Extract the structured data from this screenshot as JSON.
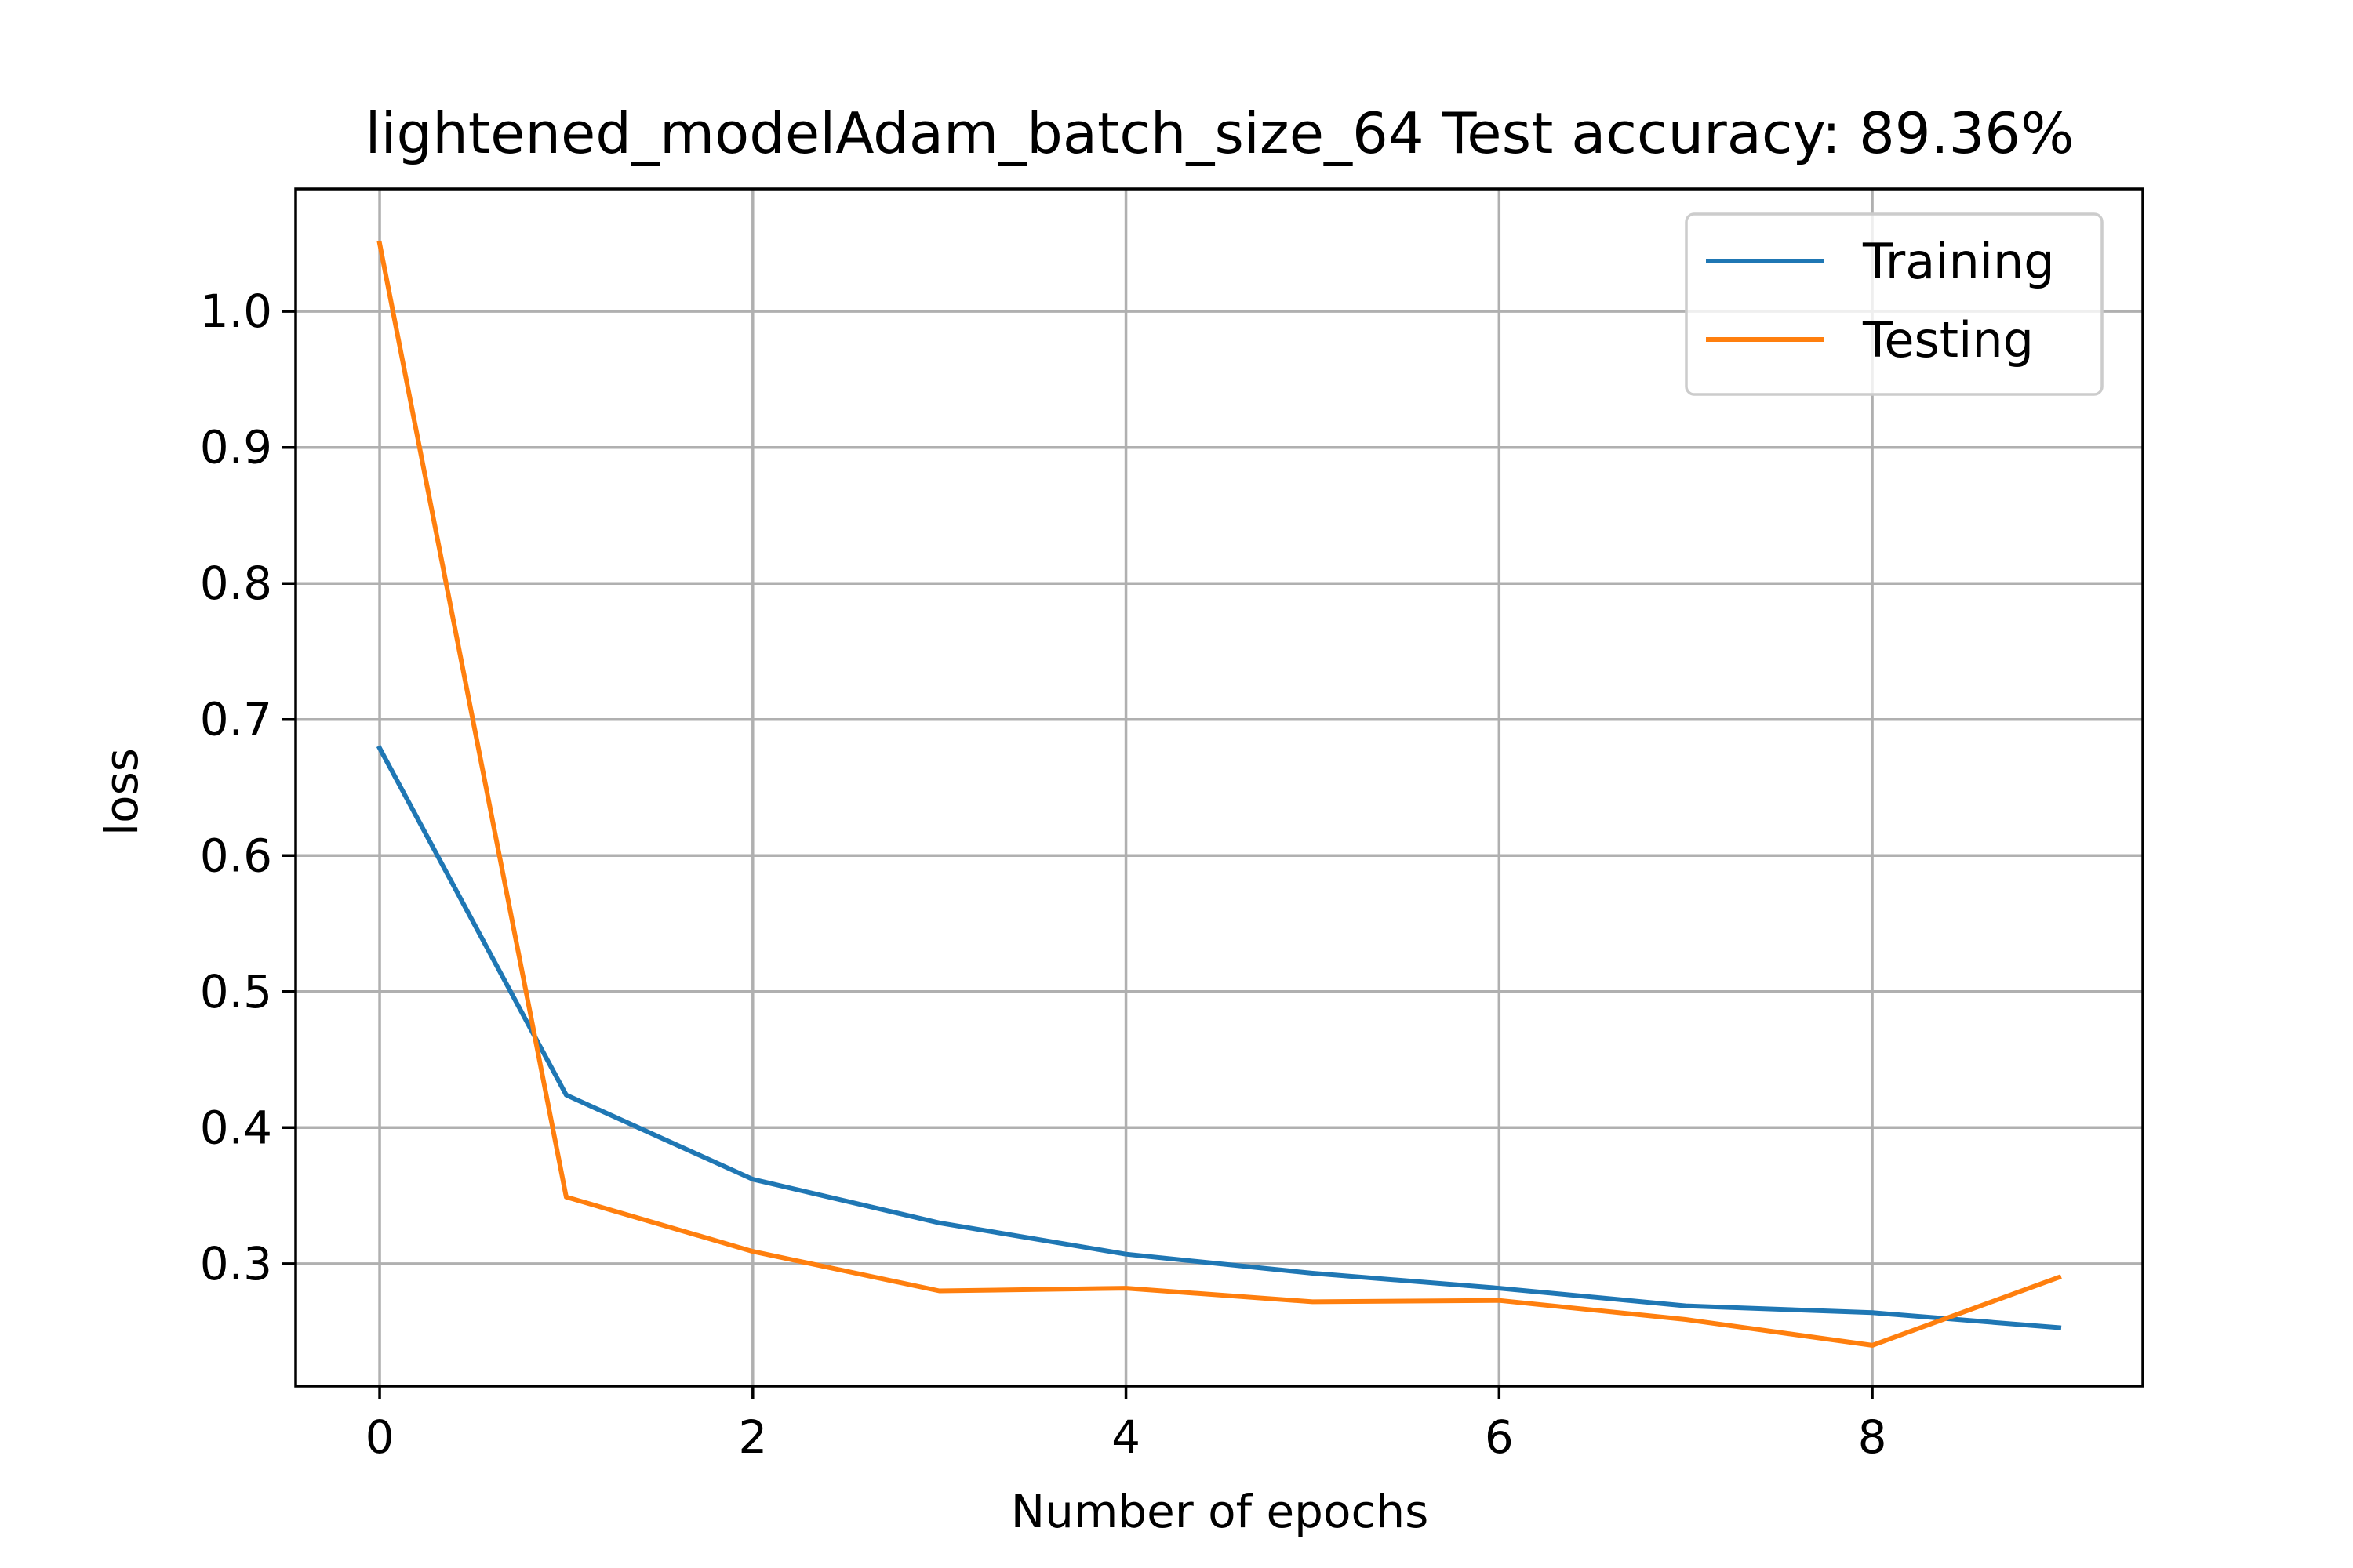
{
  "chart_data": {
    "type": "line",
    "title": "lightened_modelAdam_batch_size_64 Test accuracy: 89.36%",
    "xlabel": "Number of epochs",
    "ylabel": "loss",
    "x": [
      0,
      1,
      2,
      3,
      4,
      5,
      6,
      7,
      8,
      9
    ],
    "xlim": [
      -0.45,
      9.45
    ],
    "ylim": [
      0.21,
      1.09
    ],
    "xticks": [
      0,
      2,
      4,
      6,
      8
    ],
    "xtick_labels": [
      "0",
      "2",
      "4",
      "6",
      "8"
    ],
    "yticks": [
      0.3,
      0.4,
      0.5,
      0.6,
      0.7,
      0.8,
      0.9,
      1.0
    ],
    "ytick_labels": [
      "0.3",
      "0.4",
      "0.5",
      "0.6",
      "0.7",
      "0.8",
      "0.9",
      "1.0"
    ],
    "grid": true,
    "legend_position": "top-right",
    "series": [
      {
        "name": "Training",
        "color": "#1f77b4",
        "values": [
          0.679,
          0.424,
          0.362,
          0.33,
          0.307,
          0.293,
          0.282,
          0.269,
          0.264,
          0.253
        ]
      },
      {
        "name": "Testing",
        "color": "#ff7f0e",
        "values": [
          1.05,
          0.349,
          0.309,
          0.28,
          0.282,
          0.272,
          0.273,
          0.259,
          0.24,
          0.29
        ]
      }
    ]
  }
}
